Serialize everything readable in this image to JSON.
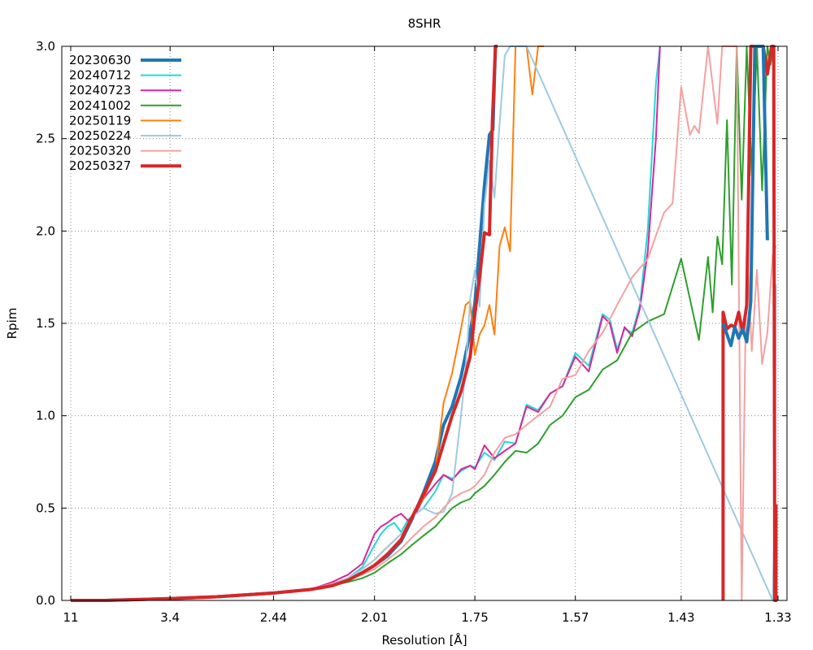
{
  "chart_data": {
    "type": "line",
    "title": "8SHR",
    "xlabel": "Resolution [Å]",
    "ylabel": "Rpim",
    "ylim": [
      0,
      3.0
    ],
    "grid": true,
    "legend_position": "top-left",
    "x_scale": "reciprocal-squared",
    "x_ticks": [
      "11",
      "3.4",
      "2.44",
      "2.01",
      "1.75",
      "1.57",
      "1.43",
      "1.33"
    ],
    "y_ticks": [
      "0.0",
      "0.5",
      "1.0",
      "1.5",
      "2.0",
      "2.5",
      "3.0"
    ],
    "series": [
      {
        "name": "20230630",
        "color": "#1f77b4",
        "width": 4,
        "x": [
          11.0,
          5.3,
          3.4,
          2.85,
          2.44,
          2.25,
          2.16,
          2.1,
          2.05,
          2.01,
          1.97,
          1.93,
          1.9,
          1.87,
          1.84,
          1.82,
          1.8,
          1.78,
          1.76,
          1.75,
          1.74,
          1.73,
          1.72,
          1.713,
          1.708,
          1.704
        ],
        "y": [
          0.0,
          0.0,
          0.01,
          0.02,
          0.04,
          0.06,
          0.08,
          0.11,
          0.15,
          0.19,
          0.24,
          0.32,
          0.44,
          0.58,
          0.75,
          0.95,
          1.05,
          1.21,
          1.45,
          1.61,
          1.92,
          2.25,
          2.52,
          2.55,
          3.0,
          3.0
        ]
      },
      {
        "name": "20240712",
        "color": "#22d8d8",
        "width": 2,
        "x": [
          11.0,
          3.4,
          2.44,
          2.25,
          2.16,
          2.1,
          2.05,
          2.01,
          1.99,
          1.97,
          1.95,
          1.93,
          1.91,
          1.89,
          1.87,
          1.84,
          1.82,
          1.8,
          1.78,
          1.76,
          1.75,
          1.73,
          1.71,
          1.69,
          1.67,
          1.65,
          1.63,
          1.61,
          1.59,
          1.57,
          1.55,
          1.53,
          1.52,
          1.51,
          1.5,
          1.49,
          1.48,
          1.47,
          1.46,
          1.455
        ],
        "y": [
          0.0,
          0.01,
          0.04,
          0.06,
          0.09,
          0.12,
          0.18,
          0.3,
          0.36,
          0.4,
          0.42,
          0.37,
          0.44,
          0.47,
          0.5,
          0.59,
          0.68,
          0.66,
          0.7,
          0.73,
          0.72,
          0.8,
          0.76,
          0.86,
          0.85,
          1.06,
          1.03,
          1.12,
          1.16,
          1.34,
          1.27,
          1.55,
          1.52,
          1.36,
          1.47,
          1.45,
          1.6,
          2.01,
          2.8,
          3.0
        ]
      },
      {
        "name": "20240723",
        "color": "#d6279b",
        "width": 2,
        "x": [
          11.0,
          3.4,
          2.44,
          2.25,
          2.16,
          2.1,
          2.05,
          2.01,
          1.99,
          1.97,
          1.95,
          1.93,
          1.91,
          1.89,
          1.87,
          1.84,
          1.82,
          1.8,
          1.78,
          1.76,
          1.75,
          1.73,
          1.71,
          1.69,
          1.67,
          1.65,
          1.63,
          1.61,
          1.59,
          1.57,
          1.55,
          1.53,
          1.52,
          1.51,
          1.5,
          1.49,
          1.48,
          1.47,
          1.46,
          1.455
        ],
        "y": [
          0.0,
          0.01,
          0.04,
          0.06,
          0.1,
          0.14,
          0.2,
          0.36,
          0.4,
          0.42,
          0.45,
          0.47,
          0.43,
          0.47,
          0.55,
          0.63,
          0.68,
          0.65,
          0.71,
          0.73,
          0.71,
          0.84,
          0.77,
          0.81,
          0.85,
          1.05,
          1.02,
          1.12,
          1.16,
          1.32,
          1.24,
          1.54,
          1.5,
          1.34,
          1.48,
          1.43,
          1.58,
          1.89,
          2.5,
          3.0
        ]
      },
      {
        "name": "20241002",
        "color": "#2ca02c",
        "width": 2,
        "x": [
          11.0,
          5.3,
          3.4,
          2.85,
          2.44,
          2.25,
          2.16,
          2.1,
          2.05,
          2.01,
          1.97,
          1.93,
          1.9,
          1.87,
          1.84,
          1.82,
          1.8,
          1.78,
          1.76,
          1.75,
          1.73,
          1.71,
          1.69,
          1.67,
          1.65,
          1.63,
          1.61,
          1.59,
          1.57,
          1.55,
          1.53,
          1.51,
          1.49,
          1.47,
          1.45,
          1.43,
          1.41,
          1.4,
          1.395,
          1.39,
          1.385,
          1.38,
          1.375,
          1.37,
          1.365,
          1.36,
          1.355,
          1.35,
          1.345,
          1.34,
          1.337,
          1.334,
          1.332
        ],
        "y": [
          0.0,
          0.0,
          0.01,
          0.02,
          0.04,
          0.06,
          0.08,
          0.1,
          0.12,
          0.15,
          0.2,
          0.25,
          0.3,
          0.35,
          0.4,
          0.45,
          0.5,
          0.53,
          0.55,
          0.58,
          0.62,
          0.68,
          0.75,
          0.81,
          0.8,
          0.85,
          0.95,
          1.0,
          1.1,
          1.14,
          1.25,
          1.3,
          1.45,
          1.51,
          1.55,
          1.85,
          1.41,
          1.86,
          1.56,
          1.97,
          1.82,
          2.6,
          1.71,
          3.0,
          2.17,
          3.0,
          2.3,
          3.0,
          2.22,
          3.0,
          2.9,
          3.0,
          3.0
        ]
      },
      {
        "name": "20250119",
        "color": "#ff7f0e",
        "width": 2,
        "x": [
          11.0,
          3.4,
          2.44,
          2.25,
          2.16,
          2.1,
          2.05,
          2.01,
          1.97,
          1.93,
          1.9,
          1.87,
          1.84,
          1.82,
          1.8,
          1.78,
          1.77,
          1.76,
          1.75,
          1.74,
          1.73,
          1.72,
          1.71,
          1.7,
          1.69,
          1.68,
          1.67,
          1.66,
          1.65,
          1.64,
          1.63,
          1.62
        ],
        "y": [
          0.0,
          0.01,
          0.04,
          0.06,
          0.09,
          0.12,
          0.17,
          0.22,
          0.29,
          0.36,
          0.45,
          0.55,
          0.7,
          1.07,
          1.23,
          1.47,
          1.6,
          1.62,
          1.33,
          1.44,
          1.49,
          1.6,
          1.44,
          1.92,
          2.02,
          1.89,
          3.0,
          3.0,
          3.0,
          2.74,
          3.0,
          3.0
        ]
      },
      {
        "name": "20250224",
        "color": "#9ecae1",
        "width": 2,
        "x": [
          11.0,
          3.4,
          2.44,
          2.25,
          2.16,
          2.1,
          2.05,
          2.01,
          1.97,
          1.93,
          1.9,
          1.87,
          1.84,
          1.82,
          1.8,
          1.78,
          1.77,
          1.76,
          1.75,
          1.74,
          1.73,
          1.72,
          1.71,
          1.7,
          1.69,
          1.68,
          1.67,
          1.66,
          1.65,
          1.335,
          1.333,
          1.332
        ],
        "y": [
          0.0,
          0.01,
          0.04,
          0.06,
          0.09,
          0.12,
          0.17,
          0.22,
          0.29,
          0.36,
          0.45,
          0.5,
          0.47,
          0.48,
          0.58,
          1.0,
          1.24,
          1.63,
          1.79,
          1.59,
          2.14,
          2.38,
          2.18,
          2.58,
          2.95,
          3.0,
          3.0,
          3.0,
          3.0,
          0.0,
          0.5,
          1.71
        ]
      },
      {
        "name": "20250320",
        "color": "#f4a0a0",
        "width": 2,
        "x": [
          11.0,
          5.3,
          3.4,
          2.85,
          2.44,
          2.25,
          2.16,
          2.1,
          2.05,
          2.01,
          1.97,
          1.93,
          1.9,
          1.87,
          1.84,
          1.82,
          1.8,
          1.78,
          1.76,
          1.75,
          1.73,
          1.71,
          1.69,
          1.67,
          1.65,
          1.63,
          1.61,
          1.59,
          1.57,
          1.55,
          1.53,
          1.51,
          1.49,
          1.47,
          1.45,
          1.44,
          1.43,
          1.42,
          1.415,
          1.41,
          1.4,
          1.39,
          1.385,
          1.38,
          1.375,
          1.37,
          1.365,
          1.36,
          1.355,
          1.35,
          1.345,
          1.34,
          1.335,
          1.332
        ],
        "y": [
          0.0,
          0.0,
          0.01,
          0.02,
          0.04,
          0.06,
          0.09,
          0.11,
          0.14,
          0.17,
          0.22,
          0.28,
          0.34,
          0.4,
          0.45,
          0.5,
          0.55,
          0.58,
          0.6,
          0.62,
          0.68,
          0.8,
          0.88,
          0.9,
          0.95,
          1.0,
          1.05,
          1.2,
          1.22,
          1.35,
          1.45,
          1.6,
          1.75,
          1.85,
          2.1,
          2.15,
          2.78,
          2.52,
          2.57,
          2.53,
          3.0,
          2.58,
          3.0,
          3.0,
          3.0,
          3.0,
          0.0,
          1.93,
          1.35,
          1.79,
          1.28,
          1.45,
          1.87,
          1.92
        ]
      },
      {
        "name": "20250327",
        "color": "#d62728",
        "width": 4,
        "x": [
          11.0,
          5.3,
          3.4,
          2.85,
          2.44,
          2.25,
          2.16,
          2.1,
          2.05,
          2.01,
          1.97,
          1.93,
          1.9,
          1.87,
          1.84,
          1.82,
          1.8,
          1.78,
          1.76,
          1.75,
          1.74,
          1.73,
          1.72,
          1.714,
          1.708,
          1.704
        ],
        "y": [
          0.0,
          0.0,
          0.01,
          0.02,
          0.04,
          0.06,
          0.08,
          0.11,
          0.15,
          0.19,
          0.25,
          0.33,
          0.45,
          0.57,
          0.7,
          0.85,
          1.0,
          1.13,
          1.32,
          1.55,
          1.75,
          1.99,
          1.98,
          2.6,
          3.0,
          3.0
        ]
      }
    ],
    "extra_segments": [
      {
        "series": "20250327",
        "color": "#d62728",
        "width": 4,
        "x": [
          1.384,
          1.384,
          1.38,
          1.376,
          1.372,
          1.368,
          1.364,
          1.36,
          1.356,
          1.352,
          1.348,
          1.344,
          1.34,
          1.336,
          1.334,
          1.333,
          1.332,
          1.332
        ],
        "y": [
          0.0,
          1.56,
          1.47,
          1.49,
          1.48,
          1.56,
          1.45,
          1.6,
          3.0,
          3.0,
          3.0,
          3.0,
          2.85,
          3.0,
          3.0,
          0.0,
          0.0,
          0.52
        ]
      },
      {
        "series": "20230630",
        "color": "#1f77b4",
        "width": 4,
        "x": [
          1.384,
          1.38,
          1.376,
          1.372,
          1.368,
          1.364,
          1.36,
          1.356,
          1.352,
          1.348,
          1.344,
          1.34
        ],
        "y": [
          1.5,
          1.44,
          1.38,
          1.48,
          1.42,
          1.47,
          1.4,
          1.62,
          3.0,
          3.0,
          3.0,
          1.95
        ]
      }
    ]
  }
}
